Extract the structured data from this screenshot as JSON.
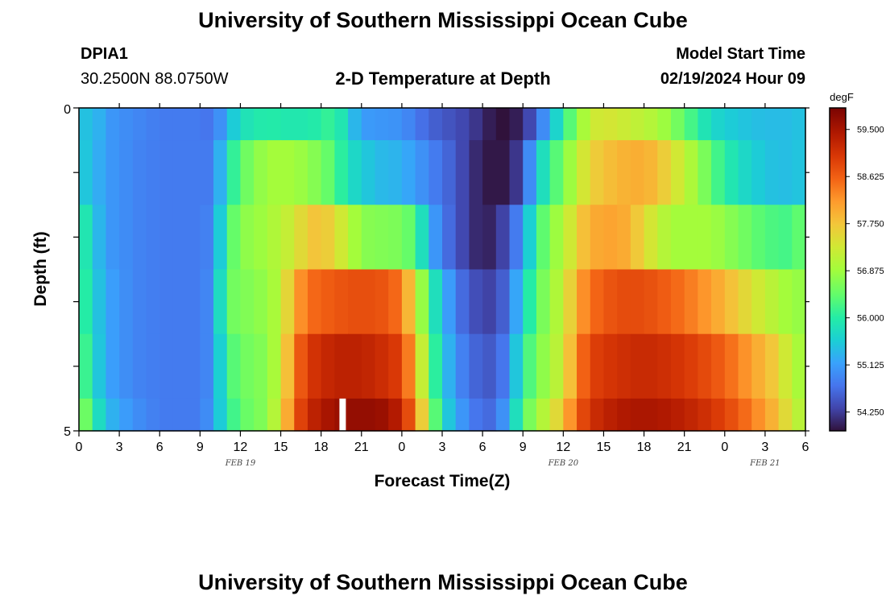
{
  "header": {
    "title": "University of Southern Mississippi Ocean Cube",
    "station_id": "DPIA1",
    "coordinates": "30.2500N  88.0750W",
    "plot_title": "2-D Temperature at Depth",
    "model_start_label": "Model Start Time",
    "model_start_value": "02/19/2024 Hour 09"
  },
  "footer": {
    "title": "University of Southern Mississippi Ocean Cube"
  },
  "chart_data": {
    "type": "heatmap",
    "title": "2-D Temperature at Depth",
    "xlabel": "Forecast Time(Z)",
    "ylabel": "Depth (ft)",
    "x_tick_labels": [
      "0",
      "3",
      "6",
      "9",
      "12",
      "15",
      "18",
      "21",
      "0",
      "3",
      "6",
      "9",
      "12",
      "15",
      "18",
      "21",
      "0",
      "3",
      "6"
    ],
    "date_labels": [
      {
        "label": "FEB 19",
        "hour_index": 12
      },
      {
        "label": "FEB 20",
        "hour_index": 36
      },
      {
        "label": "FEB 21",
        "hour_index": 51
      }
    ],
    "y_tick_labels": [
      "0",
      "5"
    ],
    "ylim": [
      0,
      5
    ],
    "depth_levels": [
      0,
      1,
      2,
      3,
      4,
      5
    ],
    "hours_range": [
      0,
      54
    ],
    "colorbar": {
      "unit": "degF",
      "min": 53.9,
      "max": 59.9,
      "tick_labels": [
        "59.500",
        "58.625",
        "57.750",
        "56.875",
        "56.000",
        "55.125",
        "54.250"
      ],
      "tick_values": [
        59.5,
        58.625,
        57.75,
        56.875,
        56.0,
        55.125,
        54.25
      ]
    },
    "gap_hour": 19.6,
    "layer_keyframes": [
      [
        [
          0,
          55.4
        ],
        [
          1,
          55.5
        ],
        [
          2,
          55.1
        ],
        [
          3,
          55.0
        ],
        [
          6,
          54.8
        ],
        [
          9,
          54.8
        ],
        [
          10,
          54.7
        ],
        [
          11,
          55.3
        ],
        [
          12,
          55.8
        ],
        [
          14,
          56.0
        ],
        [
          16,
          55.9
        ],
        [
          18,
          56.0
        ],
        [
          19,
          56.2
        ],
        [
          20,
          55.6
        ],
        [
          21,
          55.1
        ],
        [
          24,
          55.0
        ],
        [
          26,
          54.6
        ],
        [
          29,
          54.3
        ],
        [
          30,
          54.1
        ],
        [
          31,
          53.9
        ],
        [
          32,
          53.9
        ],
        [
          33,
          54.1
        ],
        [
          34,
          54.6
        ],
        [
          35,
          55.3
        ],
        [
          36,
          56.0
        ],
        [
          37,
          56.7
        ],
        [
          38,
          57.2
        ],
        [
          39,
          57.4
        ],
        [
          40,
          57.3
        ],
        [
          41,
          57.2
        ],
        [
          43,
          57.0
        ],
        [
          45,
          56.4
        ],
        [
          47,
          55.7
        ],
        [
          49,
          55.5
        ],
        [
          51,
          55.4
        ],
        [
          53,
          55.4
        ],
        [
          54,
          55.5
        ]
      ],
      [
        [
          0,
          55.6
        ],
        [
          1,
          55.4
        ],
        [
          2,
          55.1
        ],
        [
          4,
          54.9
        ],
        [
          6,
          54.8
        ],
        [
          9,
          54.8
        ],
        [
          10,
          54.8
        ],
        [
          11,
          55.8
        ],
        [
          12,
          56.4
        ],
        [
          14,
          56.9
        ],
        [
          16,
          56.9
        ],
        [
          18,
          56.6
        ],
        [
          19,
          56.3
        ],
        [
          20,
          55.8
        ],
        [
          22,
          55.4
        ],
        [
          24,
          55.3
        ],
        [
          26,
          54.9
        ],
        [
          28,
          54.5
        ],
        [
          29,
          54.2
        ],
        [
          30,
          54.0
        ],
        [
          31,
          53.9
        ],
        [
          32,
          54.0
        ],
        [
          33,
          54.4
        ],
        [
          34,
          55.5
        ],
        [
          35,
          56.1
        ],
        [
          36,
          56.6
        ],
        [
          37,
          57.1
        ],
        [
          38,
          57.6
        ],
        [
          40,
          57.9
        ],
        [
          42,
          58.0
        ],
        [
          43,
          57.8
        ],
        [
          44,
          57.5
        ],
        [
          46,
          56.8
        ],
        [
          48,
          56.0
        ],
        [
          50,
          55.6
        ],
        [
          52,
          55.4
        ],
        [
          54,
          55.5
        ]
      ],
      [
        [
          0,
          56.2
        ],
        [
          1,
          55.6
        ],
        [
          2,
          55.1
        ],
        [
          4,
          54.9
        ],
        [
          6,
          54.8
        ],
        [
          9,
          54.8
        ],
        [
          10,
          54.9
        ],
        [
          11,
          56.2
        ],
        [
          12,
          56.7
        ],
        [
          14,
          56.9
        ],
        [
          16,
          57.3
        ],
        [
          17,
          57.7
        ],
        [
          18,
          57.8
        ],
        [
          19,
          57.5
        ],
        [
          20,
          57.1
        ],
        [
          21,
          56.7
        ],
        [
          24,
          56.6
        ],
        [
          25,
          56.3
        ],
        [
          26,
          55.3
        ],
        [
          27,
          54.8
        ],
        [
          28,
          54.5
        ],
        [
          29,
          54.2
        ],
        [
          30,
          54.0
        ],
        [
          31,
          54.1
        ],
        [
          32,
          54.5
        ],
        [
          33,
          55.1
        ],
        [
          34,
          56.1
        ],
        [
          35,
          56.7
        ],
        [
          36,
          57.0
        ],
        [
          37,
          57.6
        ],
        [
          38,
          58.0
        ],
        [
          40,
          58.1
        ],
        [
          41,
          57.9
        ],
        [
          42,
          57.5
        ],
        [
          44,
          56.9
        ],
        [
          47,
          56.9
        ],
        [
          49,
          56.6
        ],
        [
          51,
          56.3
        ],
        [
          53,
          56.2
        ],
        [
          54,
          56.6
        ]
      ],
      [
        [
          0,
          56.3
        ],
        [
          1,
          55.7
        ],
        [
          2,
          55.2
        ],
        [
          4,
          54.9
        ],
        [
          6,
          54.8
        ],
        [
          9,
          54.8
        ],
        [
          10,
          55.0
        ],
        [
          11,
          56.5
        ],
        [
          12,
          56.6
        ],
        [
          14,
          56.8
        ],
        [
          15,
          57.1
        ],
        [
          16,
          58.0
        ],
        [
          17,
          58.5
        ],
        [
          19,
          58.7
        ],
        [
          21,
          58.8
        ],
        [
          23,
          58.7
        ],
        [
          24,
          58.4
        ],
        [
          25,
          57.4
        ],
        [
          26,
          56.2
        ],
        [
          27,
          55.4
        ],
        [
          28,
          54.8
        ],
        [
          29,
          54.5
        ],
        [
          30,
          54.3
        ],
        [
          31,
          54.3
        ],
        [
          32,
          54.8
        ],
        [
          33,
          55.6
        ],
        [
          34,
          56.4
        ],
        [
          35,
          56.8
        ],
        [
          36,
          57.2
        ],
        [
          37,
          58.0
        ],
        [
          38,
          58.5
        ],
        [
          40,
          58.8
        ],
        [
          42,
          58.8
        ],
        [
          44,
          58.6
        ],
        [
          46,
          58.3
        ],
        [
          48,
          57.9
        ],
        [
          50,
          57.4
        ],
        [
          52,
          57.0
        ],
        [
          53,
          56.8
        ],
        [
          54,
          56.8
        ]
      ],
      [
        [
          0,
          56.5
        ],
        [
          1,
          55.8
        ],
        [
          2,
          55.2
        ],
        [
          4,
          54.9
        ],
        [
          6,
          54.8
        ],
        [
          9,
          54.8
        ],
        [
          10,
          55.0
        ],
        [
          11,
          56.2
        ],
        [
          12,
          56.5
        ],
        [
          14,
          56.7
        ],
        [
          15,
          57.2
        ],
        [
          16,
          58.4
        ],
        [
          17,
          59.0
        ],
        [
          19,
          59.3
        ],
        [
          21,
          59.3
        ],
        [
          23,
          59.1
        ],
        [
          24,
          58.9
        ],
        [
          25,
          57.9
        ],
        [
          26,
          56.5
        ],
        [
          27,
          55.6
        ],
        [
          28,
          55.0
        ],
        [
          29,
          54.7
        ],
        [
          30,
          54.5
        ],
        [
          31,
          54.5
        ],
        [
          32,
          55.0
        ],
        [
          33,
          56.0
        ],
        [
          34,
          56.6
        ],
        [
          35,
          56.9
        ],
        [
          36,
          57.3
        ],
        [
          37,
          58.3
        ],
        [
          38,
          58.9
        ],
        [
          40,
          59.1
        ],
        [
          42,
          59.2
        ],
        [
          44,
          59.1
        ],
        [
          46,
          58.9
        ],
        [
          48,
          58.6
        ],
        [
          50,
          58.1
        ],
        [
          52,
          57.6
        ],
        [
          53,
          57.0
        ],
        [
          54,
          56.9
        ]
      ],
      [
        [
          0,
          56.9
        ],
        [
          1,
          56.1
        ],
        [
          2,
          55.4
        ],
        [
          4,
          55.0
        ],
        [
          6,
          54.8
        ],
        [
          9,
          54.8
        ],
        [
          10,
          55.1
        ],
        [
          11,
          56.0
        ],
        [
          12,
          56.4
        ],
        [
          14,
          56.7
        ],
        [
          15,
          57.4
        ],
        [
          16,
          58.6
        ],
        [
          17,
          59.2
        ],
        [
          19,
          59.6
        ],
        [
          21,
          59.7
        ],
        [
          23,
          59.6
        ],
        [
          24,
          59.2
        ],
        [
          25,
          58.4
        ],
        [
          26,
          56.9
        ],
        [
          27,
          55.8
        ],
        [
          28,
          55.2
        ],
        [
          29,
          54.9
        ],
        [
          30,
          54.6
        ],
        [
          31,
          54.7
        ],
        [
          32,
          55.3
        ],
        [
          33,
          56.3
        ],
        [
          34,
          56.9
        ],
        [
          35,
          57.2
        ],
        [
          36,
          57.8
        ],
        [
          37,
          58.6
        ],
        [
          38,
          59.1
        ],
        [
          40,
          59.4
        ],
        [
          42,
          59.5
        ],
        [
          44,
          59.4
        ],
        [
          46,
          59.2
        ],
        [
          48,
          58.9
        ],
        [
          50,
          58.4
        ],
        [
          52,
          57.8
        ],
        [
          53,
          57.2
        ],
        [
          54,
          57.0
        ]
      ]
    ]
  }
}
